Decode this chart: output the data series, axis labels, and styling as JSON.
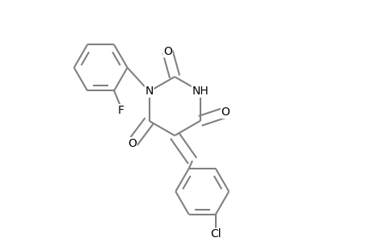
{
  "background_color": "#ffffff",
  "line_color": "#000000",
  "bond_color": "#808080",
  "text_color": "#000000",
  "line_width": 1.5,
  "font_size": 10,
  "fig_width": 4.6,
  "fig_height": 3.0,
  "dpi": 100,
  "xlim": [
    0.0,
    1.0
  ],
  "ylim": [
    0.1,
    0.95
  ]
}
